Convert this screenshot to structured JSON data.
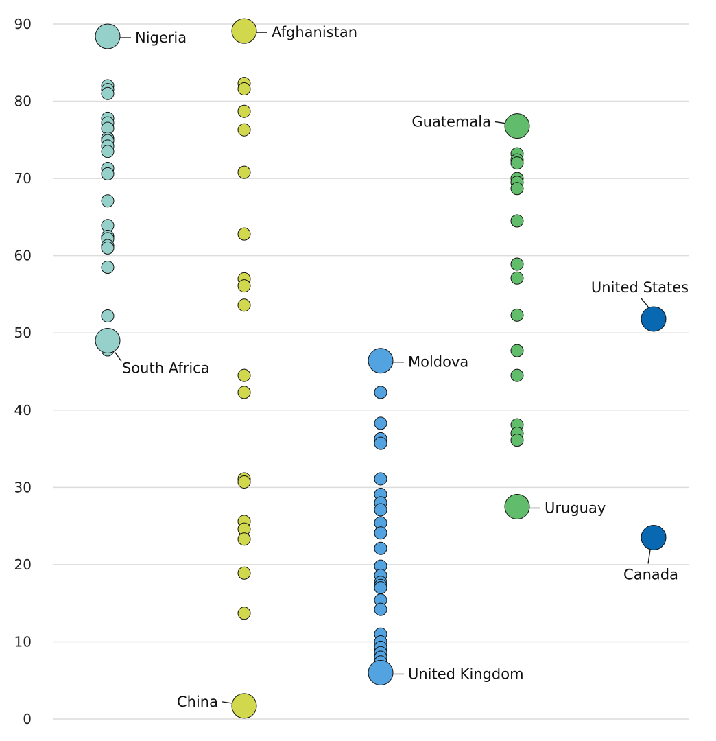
{
  "chart_data": {
    "type": "scatter",
    "title": "",
    "xlabel": "",
    "ylabel": "",
    "ylim": [
      0,
      90
    ],
    "yticks": [
      0,
      10,
      20,
      30,
      40,
      50,
      60,
      70,
      80,
      90
    ],
    "grid": true,
    "legend": "none",
    "series": [
      {
        "name": "group-1",
        "color": "#95d0cb",
        "values": [
          82.0,
          81.5,
          81.0,
          77.8,
          77.2,
          76.5,
          75.2,
          74.9,
          74.2,
          73.5,
          71.3,
          70.6,
          67.1,
          63.9,
          62.5,
          62.2,
          61.3,
          61.0,
          58.5,
          52.2,
          47.8
        ],
        "highlights": [
          {
            "label": "Nigeria",
            "value": 88.4,
            "label_side": "right"
          },
          {
            "label": "South Africa",
            "value": 49.0,
            "label_side": "below-right"
          }
        ]
      },
      {
        "name": "group-2",
        "color": "#d1d84e",
        "values": [
          82.3,
          81.6,
          78.7,
          76.3,
          70.8,
          62.8,
          57.0,
          56.1,
          53.6,
          44.5,
          42.3,
          31.1,
          30.7,
          25.6,
          24.6,
          23.3,
          18.9,
          13.7
        ],
        "highlights": [
          {
            "label": "Afghanistan",
            "value": 89.1,
            "label_side": "right"
          },
          {
            "label": "China",
            "value": 1.7,
            "label_side": "left"
          }
        ]
      },
      {
        "name": "group-3",
        "color": "#52a3df",
        "values": [
          42.3,
          38.3,
          36.3,
          35.7,
          31.1,
          29.1,
          28.0,
          27.1,
          25.4,
          24.1,
          22.1,
          19.8,
          18.6,
          17.7,
          17.3,
          17.0,
          15.4,
          14.2,
          11.0,
          10.0,
          9.3,
          8.6,
          8.0,
          7.4
        ],
        "highlights": [
          {
            "label": "Moldova",
            "value": 46.4,
            "label_side": "right"
          },
          {
            "label": "United Kingdom",
            "value": 6.0,
            "label_side": "right"
          }
        ]
      },
      {
        "name": "group-4",
        "color": "#61bc6c",
        "values": [
          73.2,
          72.4,
          72.0,
          70.0,
          69.5,
          68.7,
          64.5,
          58.9,
          57.1,
          52.3,
          47.7,
          44.5,
          38.1,
          37.0,
          36.1
        ],
        "highlights": [
          {
            "label": "Guatemala",
            "value": 76.8,
            "label_side": "left"
          },
          {
            "label": "Uruguay",
            "value": 27.5,
            "label_side": "right"
          }
        ]
      },
      {
        "name": "group-5",
        "color": "#0868b2",
        "values": [],
        "highlights": [
          {
            "label": "United States",
            "value": 51.8,
            "label_side": "above"
          },
          {
            "label": "Canada",
            "value": 23.5,
            "label_side": "below"
          }
        ]
      }
    ]
  }
}
